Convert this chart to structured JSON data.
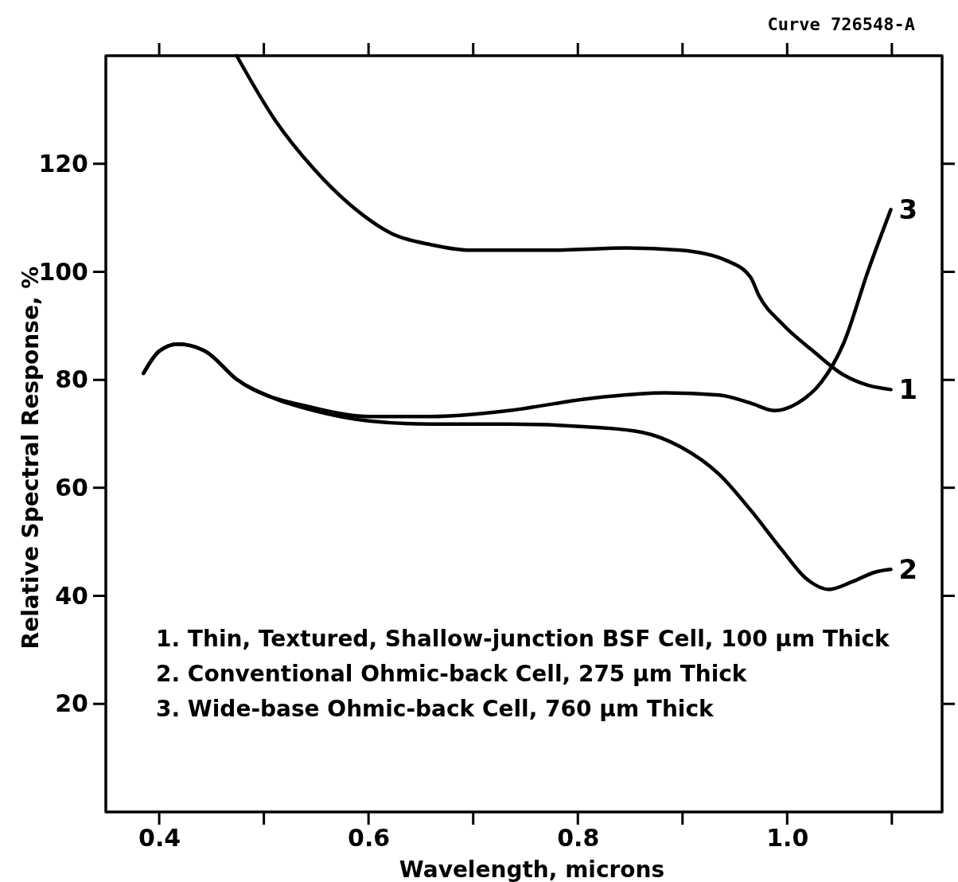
{
  "chart_data": {
    "type": "line",
    "xlabel": "Wavelength, microns",
    "ylabel": "Relative Spectral Response, %",
    "xlim": [
      0.349,
      1.148
    ],
    "ylim": [
      0,
      140
    ],
    "xticks": [
      0.4,
      {
        "value": 0.5,
        "label": null
      },
      0.6,
      {
        "value": 0.7,
        "label": null
      },
      0.8,
      {
        "value": 0.9,
        "label": null
      },
      {
        "value": 1.0,
        "label": "1.0"
      },
      {
        "value": 1.1,
        "label": null
      }
    ],
    "yticks": [
      20,
      40,
      60,
      80,
      100,
      120
    ],
    "grid": false,
    "legend": "right",
    "marker": "none",
    "line_style": "solid",
    "annotations": [
      "Curve 726548-A",
      "1.  Thin, Textured, Shallow-junction BSF Cell, 100 µm Thick",
      "2.  Conventional Ohmic-back Cell, 275 µm Thick",
      "3.  Wide-base Ohmic-back Cell, 760 µm Thick"
    ],
    "series": [
      {
        "name": "1",
        "color": "#000000",
        "x": [
          0.474,
          0.511,
          0.548,
          0.585,
          0.623,
          0.66,
          0.697,
          0.772,
          0.846,
          0.898,
          0.943,
          0.965,
          0.973,
          0.995,
          1.025,
          1.054,
          1.077,
          1.099
        ],
        "values": [
          140,
          128,
          119,
          112,
          107,
          105,
          104,
          104,
          104.4,
          104,
          102,
          99,
          95.6,
          90.4,
          85.3,
          80.9,
          79,
          78.2
        ]
      },
      {
        "name": "2",
        "color": "#000000",
        "x": [
          0.385,
          0.4,
          0.418,
          0.444,
          0.474,
          0.511,
          0.548,
          0.6,
          0.66,
          0.734,
          0.809,
          0.861,
          0.898,
          0.935,
          0.965,
          0.995,
          1.017,
          1.04,
          1.062,
          1.084,
          1.099
        ],
        "values": [
          81.2,
          85.3,
          86.6,
          85.3,
          80.1,
          76.5,
          74.3,
          72.4,
          71.8,
          71.8,
          71.3,
          70.3,
          67.6,
          62.5,
          55.9,
          48.5,
          43.4,
          41.2,
          42.6,
          44.4,
          44.9
        ]
      },
      {
        "name": "3",
        "color": "#000000",
        "x": [
          0.385,
          0.4,
          0.418,
          0.444,
          0.474,
          0.548,
          0.6,
          0.66,
          0.734,
          0.809,
          0.883,
          0.935,
          0.965,
          0.988,
          1.01,
          1.032,
          1.054,
          1.077,
          1.099
        ],
        "values": [
          81.2,
          85.3,
          86.6,
          85.3,
          80.1,
          74.8,
          73.2,
          73.2,
          74.3,
          76.5,
          77.6,
          77.2,
          75.7,
          74.3,
          75.7,
          79.4,
          86.8,
          100,
          111.5
        ]
      }
    ]
  }
}
